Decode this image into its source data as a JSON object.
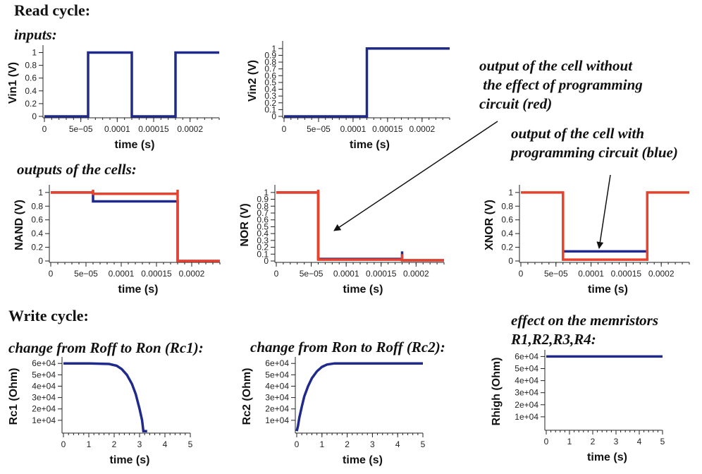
{
  "labels": {
    "read_cycle": "Read cycle:",
    "inputs": "inputs:",
    "outputs": "outputs of the cells:",
    "write_cycle": "Write cycle:",
    "change_rc1": "change from Roff to Ron (Rc1):",
    "change_rc2": "change from Ron to Roff (Rc2):",
    "effect_memristors": "effect on the memristors\nR1,R2,R3,R4:",
    "annot_red": "output of the cell without\n the effect of programming\ncircuit (red)",
    "annot_blue": "output of the cell with\nprogramming circuit (blue)"
  },
  "colors": {
    "blue": "#1f2a8c",
    "red": "#e8412c",
    "axis": "#222222",
    "arrow": "#111111"
  },
  "chart_data": [
    {
      "id": "vin1",
      "type": "line",
      "xlabel": "time (s)",
      "ylabel": "Vin1 (V)",
      "xlim": [
        0,
        0.00024
      ],
      "ylim": [
        0,
        1.05
      ],
      "xticks": [
        0,
        5e-05,
        0.0001,
        0.00015,
        0.0002
      ],
      "xticklabels": [
        "0",
        "5e−05",
        "0.0001",
        "0.00015",
        "0.0002"
      ],
      "yticks": [
        0,
        0.2,
        0.4,
        0.6,
        0.8,
        1
      ],
      "yticklabels": [
        "0",
        "0.2",
        "0.4",
        "0.6",
        "0.8",
        "1"
      ],
      "series": [
        {
          "color": "blue",
          "x": [
            0,
            6e-05,
            6e-05,
            0.00012,
            0.00012,
            0.00018,
            0.00018,
            0.00024
          ],
          "y": [
            0,
            0,
            1,
            1,
            0,
            0,
            1,
            1
          ]
        }
      ]
    },
    {
      "id": "vin2",
      "type": "line",
      "xlabel": "time (s)",
      "ylabel": "Vin2 (V)",
      "xlim": [
        0,
        0.00024
      ],
      "ylim": [
        0,
        1.05
      ],
      "xticks": [
        0,
        5e-05,
        0.0001,
        0.00015,
        0.0002
      ],
      "xticklabels": [
        "0",
        "5e−05",
        "0.0001",
        "0.00015",
        "0.0002"
      ],
      "yticks": [
        0,
        0.1,
        0.2,
        0.3,
        0.4,
        0.5,
        0.6,
        0.7,
        0.8,
        0.9,
        1
      ],
      "yticklabels": [
        "0",
        "0.1",
        "0.2",
        "0.3",
        "0.4",
        "0.5",
        "0.6",
        "0.7",
        "0.8",
        "0.9",
        "1"
      ],
      "series": [
        {
          "color": "blue",
          "x": [
            0,
            0.00012,
            0.00012,
            0.00024
          ],
          "y": [
            0,
            0,
            1,
            1
          ]
        }
      ]
    },
    {
      "id": "nand",
      "type": "line",
      "xlabel": "time (s)",
      "ylabel": "NAND (V)",
      "xlim": [
        0,
        0.00024
      ],
      "ylim": [
        0,
        1.05
      ],
      "xticks": [
        0,
        5e-05,
        0.0001,
        0.00015,
        0.0002
      ],
      "xticklabels": [
        "0",
        "5e−05",
        "0.0001",
        "0.00015",
        "0.0002"
      ],
      "yticks": [
        0,
        0.2,
        0.4,
        0.6,
        0.8,
        1
      ],
      "yticklabels": [
        "0",
        "0.2",
        "0.4",
        "0.6",
        "0.8",
        "1"
      ],
      "series": [
        {
          "color": "blue",
          "x": [
            0,
            6e-05,
            6e-05,
            0.00018,
            0.00018,
            0.00024
          ],
          "y": [
            1,
            1,
            0.87,
            0.87,
            0,
            0
          ]
        },
        {
          "color": "red",
          "x": [
            0,
            6e-05,
            6e-05,
            6e-05,
            0.00018,
            0.00018,
            0.00018,
            0.00024
          ],
          "y": [
            1,
            1,
            1.04,
            0.98,
            0.98,
            1.04,
            0,
            0
          ]
        }
      ]
    },
    {
      "id": "nor",
      "type": "line",
      "xlabel": "time (s)",
      "ylabel": "NOR (V)",
      "xlim": [
        0,
        0.00024
      ],
      "ylim": [
        0,
        1.05
      ],
      "xticks": [
        0,
        5e-05,
        0.0001,
        0.00015,
        0.0002
      ],
      "xticklabels": [
        "0",
        "5e−05",
        "0.0001",
        "0.00015",
        "0.0002"
      ],
      "yticks": [
        0,
        0.1,
        0.2,
        0.3,
        0.4,
        0.5,
        0.6,
        0.7,
        0.8,
        0.9,
        1
      ],
      "yticklabels": [
        "0",
        "0.1",
        "0.2",
        "0.3",
        "0.4",
        "0.5",
        "0.6",
        "0.7",
        "0.8",
        "0.9",
        "1"
      ],
      "series": [
        {
          "color": "blue",
          "x": [
            0,
            6e-05,
            6e-05,
            0.00018,
            0.00018,
            0.00018,
            0.00024
          ],
          "y": [
            1,
            1,
            0.03,
            0.03,
            0.14,
            0.01,
            0.01
          ]
        },
        {
          "color": "red",
          "x": [
            0,
            6e-05,
            6e-05,
            6e-05,
            0.00018,
            0.00018,
            0.00018,
            0.00024
          ],
          "y": [
            1,
            1,
            1.04,
            0.02,
            0.02,
            0.1,
            0.01,
            0.01
          ]
        }
      ]
    },
    {
      "id": "xnor",
      "type": "line",
      "xlabel": "time (s)",
      "ylabel": "XNOR (V)",
      "xlim": [
        0,
        0.00024
      ],
      "ylim": [
        0,
        1.05
      ],
      "xticks": [
        0,
        5e-05,
        0.0001,
        0.00015,
        0.0002
      ],
      "xticklabels": [
        "0",
        "5e−05",
        "0.0001",
        "0.00015",
        "0.0002"
      ],
      "yticks": [
        0,
        0.2,
        0.4,
        0.6,
        0.8,
        1
      ],
      "yticklabels": [
        "0",
        "0.2",
        "0.4",
        "0.6",
        "0.8",
        "1"
      ],
      "series": [
        {
          "color": "blue",
          "x": [
            6e-05,
            0.00018
          ],
          "y": [
            0.14,
            0.14
          ]
        },
        {
          "color": "red",
          "x": [
            0,
            6e-05,
            6e-05,
            0.00018,
            0.00018,
            0.00024
          ],
          "y": [
            1,
            1,
            0.02,
            0.02,
            1,
            1
          ]
        }
      ]
    },
    {
      "id": "rc1",
      "type": "line",
      "xlabel": "time (s)",
      "ylabel": "Rc1 (Ohm)",
      "xlim": [
        0,
        5
      ],
      "ylim": [
        0,
        62000
      ],
      "xticks": [
        0,
        1,
        2,
        3,
        4,
        5
      ],
      "xticklabels": [
        "0",
        "1",
        "2",
        "3",
        "4",
        "5"
      ],
      "yticks": [
        10000,
        20000,
        30000,
        40000,
        50000,
        60000
      ],
      "yticklabels": [
        "1e+04",
        "2e+04",
        "3e+04",
        "4e+04",
        "5e+04",
        "6e+04"
      ],
      "series": [
        {
          "color": "blue",
          "x": [
            0,
            1,
            1.8,
            2.1,
            2.3,
            2.5,
            2.7,
            2.85,
            3.0,
            3.1,
            3.15,
            3.3
          ],
          "y": [
            60000,
            60000,
            59500,
            58000,
            55000,
            50000,
            42000,
            33000,
            20000,
            10000,
            500,
            500
          ]
        }
      ]
    },
    {
      "id": "rc2",
      "type": "line",
      "xlabel": "time (s)",
      "ylabel": "Rc2 (Ohm)",
      "xlim": [
        0,
        5
      ],
      "ylim": [
        0,
        62000
      ],
      "xticks": [
        0,
        1,
        2,
        3,
        4,
        5
      ],
      "xticklabels": [
        "0",
        "1",
        "2",
        "3",
        "4",
        "5"
      ],
      "yticks": [
        10000,
        20000,
        30000,
        40000,
        50000,
        60000
      ],
      "yticklabels": [
        "1e+04",
        "2e+04",
        "3e+04",
        "4e+04",
        "5e+04",
        "6e+04"
      ],
      "series": [
        {
          "color": "blue",
          "x": [
            0,
            0.05,
            0.1,
            0.2,
            0.3,
            0.45,
            0.6,
            0.8,
            1.0,
            1.2,
            1.5,
            2,
            3,
            4,
            5
          ],
          "y": [
            500,
            5000,
            12000,
            22000,
            31000,
            40000,
            47000,
            53000,
            57000,
            59000,
            60000,
            60000,
            60000,
            60000,
            60000
          ]
        }
      ]
    },
    {
      "id": "rhigh",
      "type": "line",
      "xlabel": "time (s)",
      "ylabel": "Rhigh (Ohm)",
      "xlim": [
        0,
        5
      ],
      "ylim": [
        0,
        62000
      ],
      "xticks": [
        0,
        1,
        2,
        3,
        4,
        5
      ],
      "xticklabels": [
        "0",
        "1",
        "2",
        "3",
        "4",
        "5"
      ],
      "yticks": [
        10000,
        20000,
        30000,
        40000,
        50000,
        60000
      ],
      "yticklabels": [
        "1e+04",
        "2e+04",
        "3e+04",
        "4e+04",
        "5e+04",
        "6e+04"
      ],
      "series": [
        {
          "color": "blue",
          "x": [
            0,
            5
          ],
          "y": [
            60000,
            60000
          ]
        }
      ]
    }
  ]
}
